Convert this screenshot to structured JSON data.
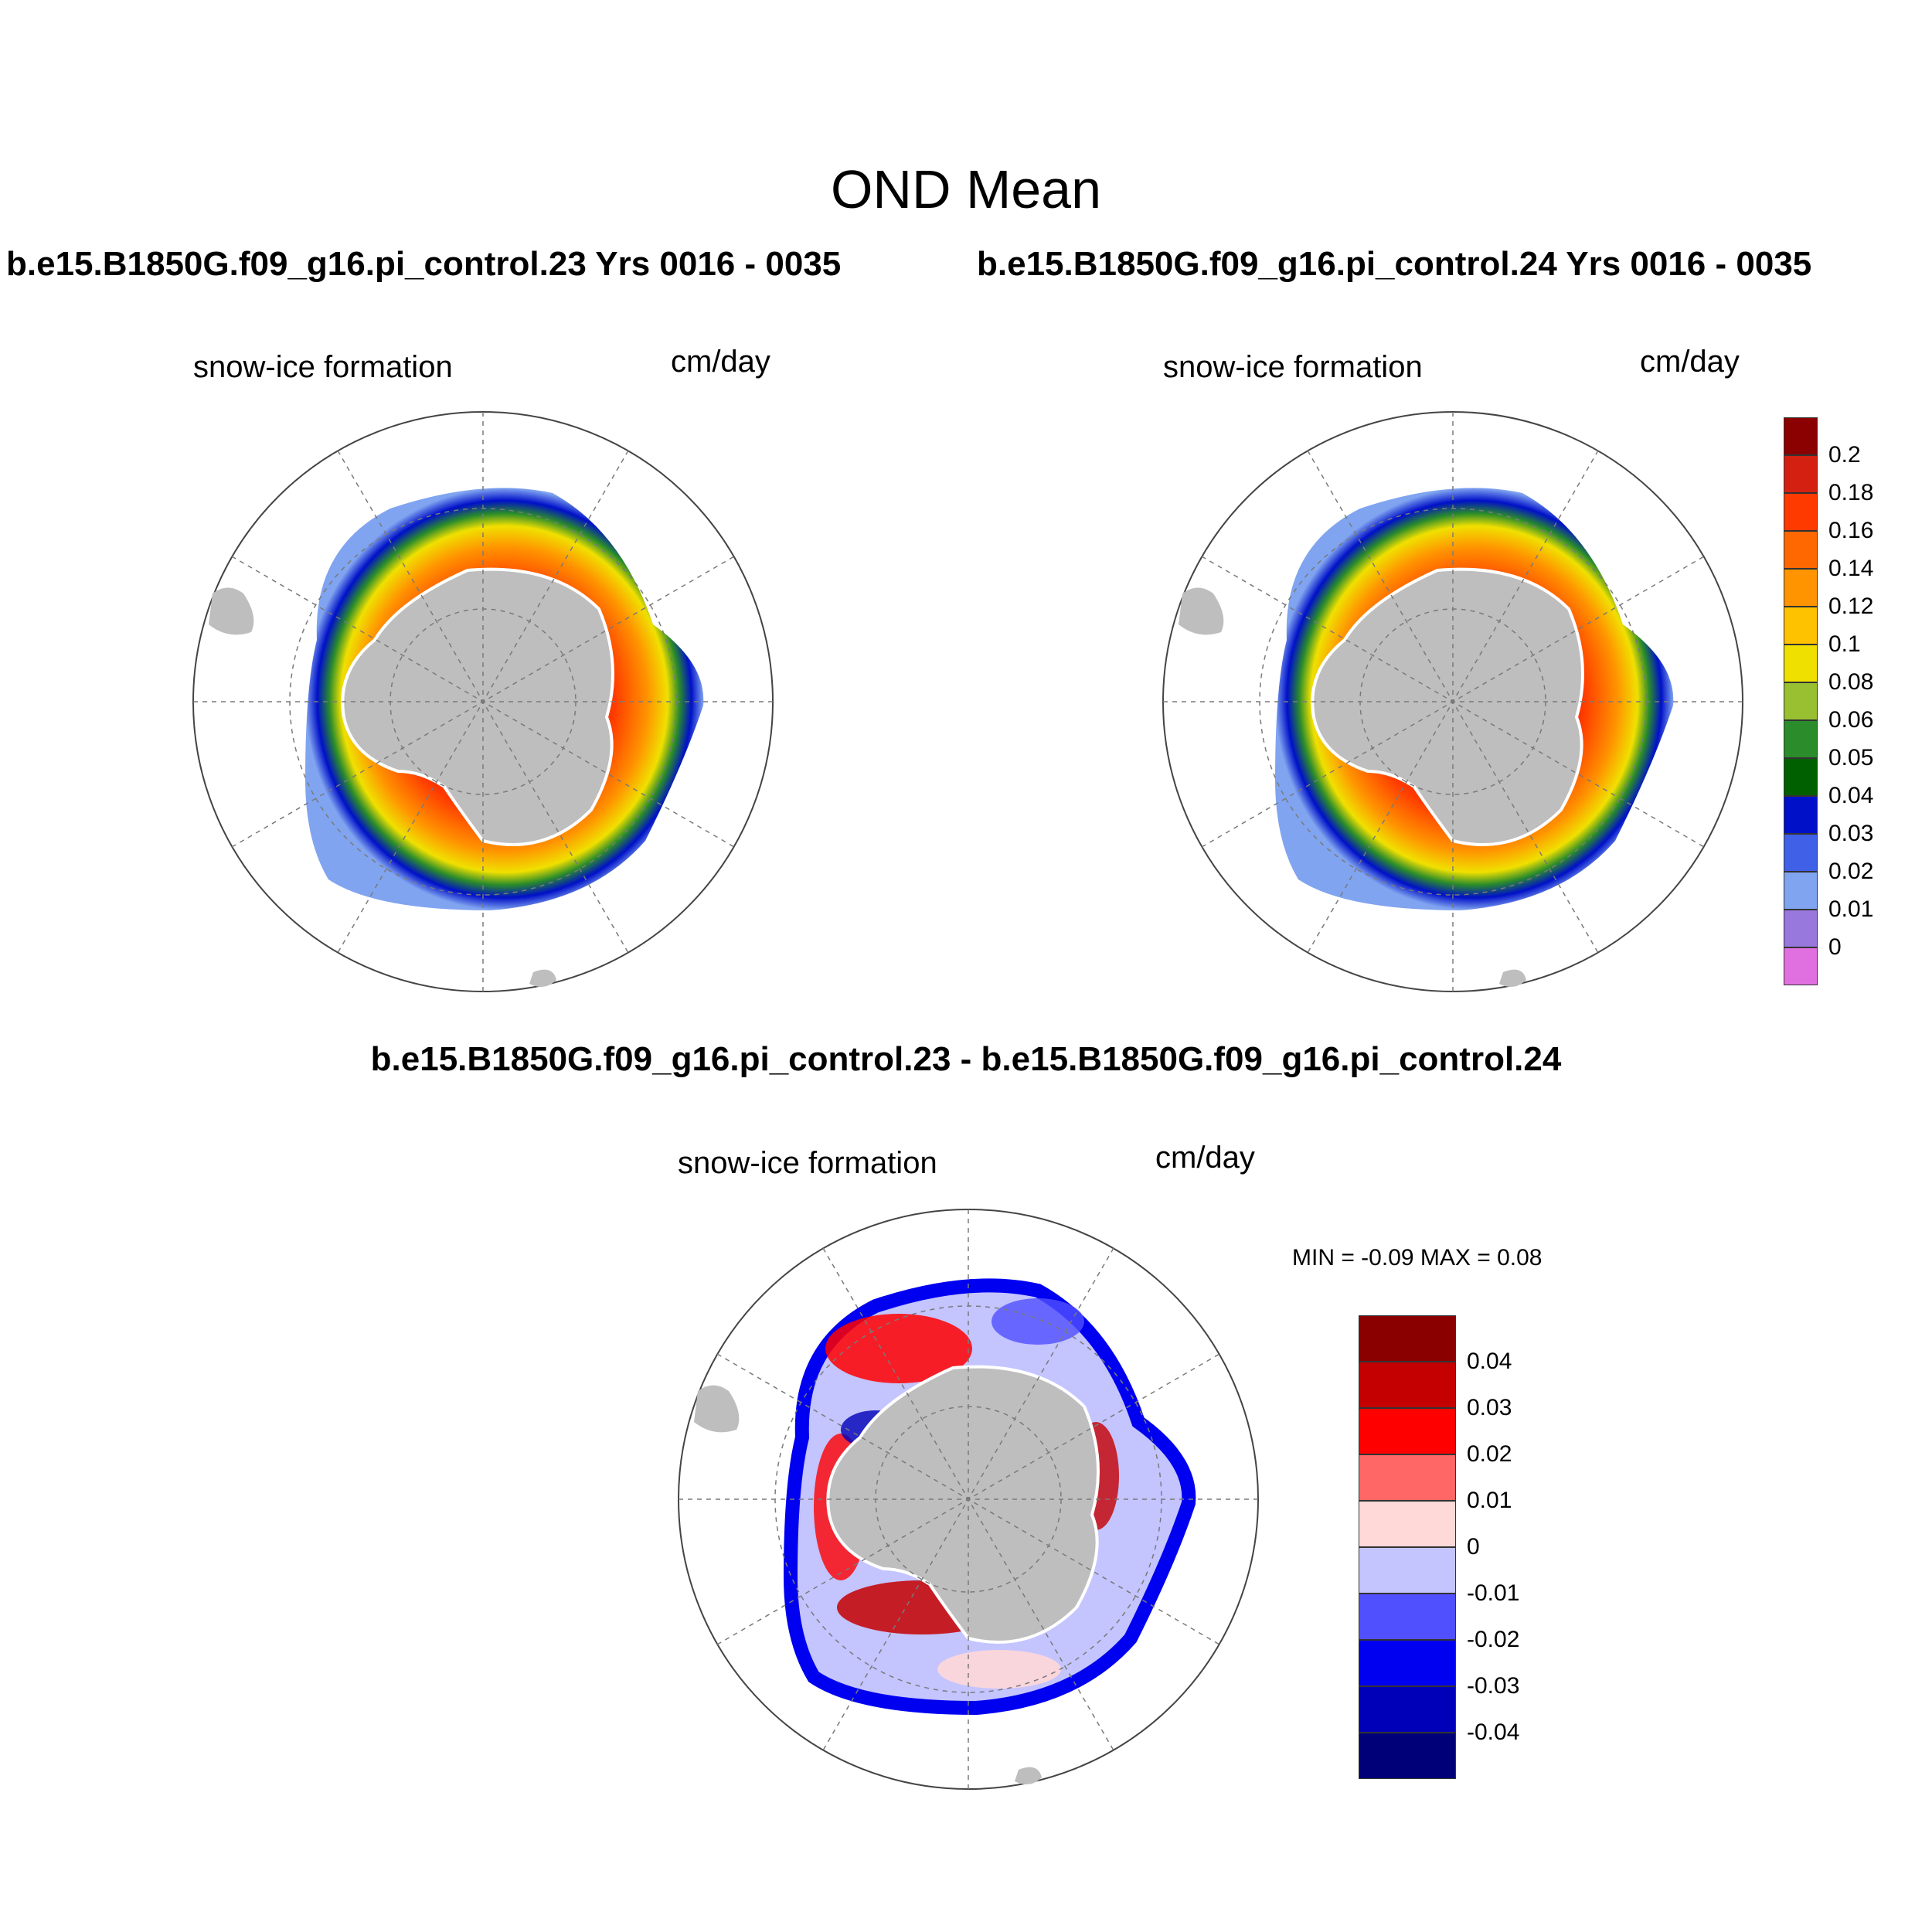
{
  "title": "OND Mean",
  "panels": {
    "left_run": {
      "title": "b.e15.B1850G.f09_g16.pi_control.23  Yrs 0016 - 0035",
      "variable": "snow-ice formation",
      "units": "cm/day"
    },
    "right_run": {
      "title": "b.e15.B1850G.f09_g16.pi_control.24  Yrs 0016 - 0035",
      "variable": "snow-ice formation",
      "units": "cm/day"
    },
    "difference": {
      "title": "b.e15.B1850G.f09_g16.pi_control.23 - b.e15.B1850G.f09_g16.pi_control.24",
      "variable": "snow-ice formation",
      "units": "cm/day",
      "min_label": "MIN =  -0.09 MAX =   0.08"
    }
  },
  "colorbars": {
    "mean": {
      "labels": [
        "0.2",
        "0.18",
        "0.16",
        "0.14",
        "0.12",
        "0.1",
        "0.08",
        "0.06",
        "0.05",
        "0.04",
        "0.03",
        "0.02",
        "0.01",
        "0"
      ],
      "colors": [
        "#8b0000",
        "#d42010",
        "#ff3a00",
        "#ff6800",
        "#ff9400",
        "#ffc200",
        "#f0e000",
        "#98c030",
        "#2a8c2a",
        "#006000",
        "#0010c8",
        "#4060e8",
        "#80a4f0",
        "#9878dc",
        "#e070e0"
      ]
    },
    "difference": {
      "labels": [
        "0.04",
        "0.03",
        "0.02",
        "0.01",
        "0",
        "-0.01",
        "-0.02",
        "-0.03",
        "-0.04"
      ],
      "colors": [
        "#8a0000",
        "#c40000",
        "#ff0000",
        "#ff6666",
        "#ffd8d8",
        "#c4c4ff",
        "#5050ff",
        "#0000f0",
        "#0000b8",
        "#000078"
      ]
    }
  },
  "map_colors": {
    "land": "#bebebe",
    "grid": "#7a7a7a"
  }
}
